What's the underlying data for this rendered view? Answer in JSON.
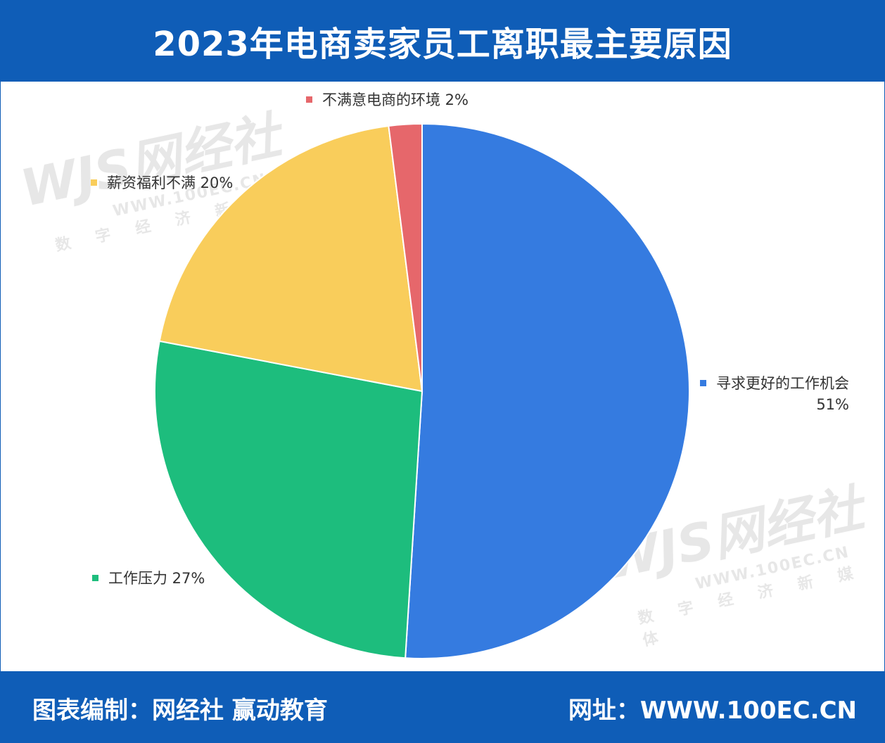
{
  "header": {
    "title": "2023年电商卖家员工离职最主要原因"
  },
  "footer": {
    "credit": "图表编制：网经社 赢动教育",
    "website": "网址：WWW.100EC.CN"
  },
  "watermark": {
    "logo": "WJS网经社",
    "url": "WWW.100EC.CN",
    "tagline": "数字经济新媒体"
  },
  "chart_data": {
    "type": "pie",
    "title": "2023年电商卖家员工离职最主要原因",
    "slices": [
      {
        "name": "寻求更好的工作机会",
        "value": 51,
        "label": "51%",
        "color": "#357be0"
      },
      {
        "name": "工作压力",
        "value": 27,
        "label": "27%",
        "color": "#1dbd7d"
      },
      {
        "name": "薪资福利不满",
        "value": 20,
        "label": "20%",
        "color": "#f9cd5b"
      },
      {
        "name": "不满意电商的环境",
        "value": 2,
        "label": "2%",
        "color": "#e6676b"
      }
    ]
  },
  "labels": {
    "opportunity": {
      "name": "寻求更好的工作机会",
      "pct": "51%"
    },
    "pressure": "工作压力 27%",
    "salary": "薪资福利不满 20%",
    "environment": "不满意电商的环境 2%"
  }
}
